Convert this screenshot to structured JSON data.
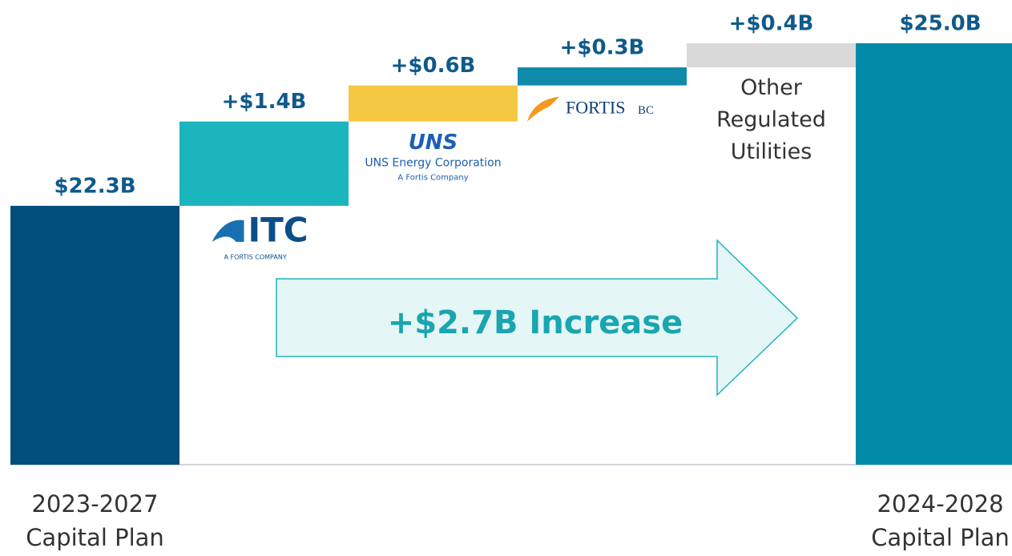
{
  "chart_data": {
    "type": "waterfall",
    "categories": [
      "2023-2027 Capital Plan",
      null,
      null,
      null,
      "Other Regulated Utilities",
      "2024-2028 Capital Plan"
    ],
    "measures": [
      "absolute",
      "relative",
      "relative",
      "relative",
      "relative",
      "absolute"
    ],
    "values": [
      22.3,
      1.4,
      0.6,
      0.3,
      0.4,
      25.0
    ],
    "value_labels": [
      "$22.3B",
      "+$1.4B",
      "+$0.6B",
      "+$0.3B",
      "+$0.4B",
      "$25.0B"
    ],
    "colors": [
      "#004f7c",
      "#1bb5bd",
      "#f4c842",
      "#0f8aa8",
      "#d9d9d9",
      "#008aa8"
    ],
    "logos": [
      null,
      {
        "text": "ITC",
        "note": "A FORTIS COMPANY"
      },
      {
        "text": "UNS",
        "lines": [
          "UNS Energy Corporation",
          "A Fortis Company"
        ]
      },
      {
        "text": "FORTIS",
        "suffix": "BC"
      },
      null,
      null
    ],
    "annotation": "+$2.7B Increase",
    "ylim": [
      18,
      25.2
    ]
  }
}
